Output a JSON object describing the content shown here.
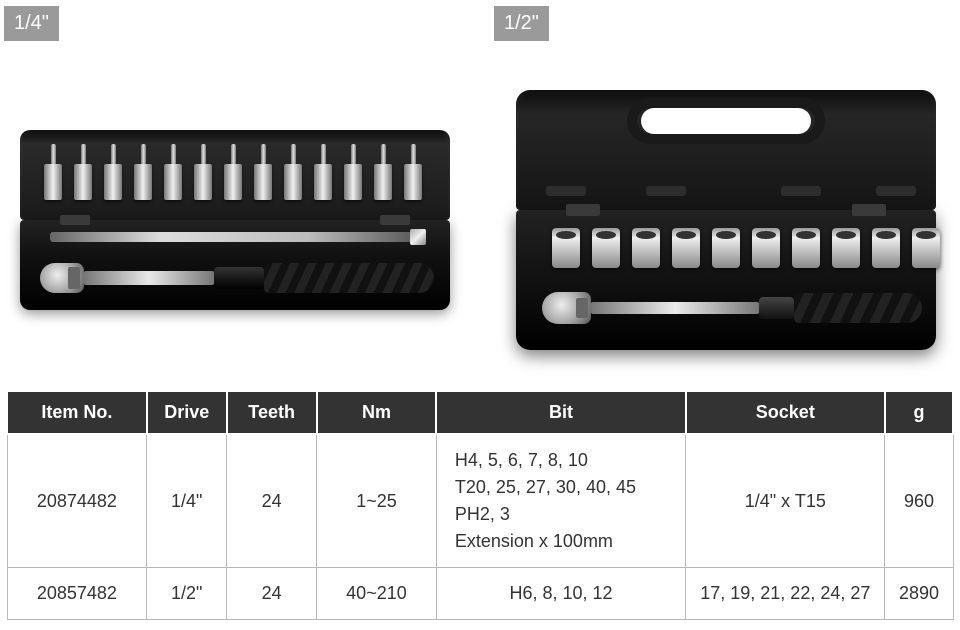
{
  "badges": {
    "left": "1/4\"",
    "right": "1/2\""
  },
  "table": {
    "headers": {
      "item": "Item No.",
      "drive": "Drive",
      "teeth": "Teeth",
      "nm": "Nm",
      "bit": "Bit",
      "socket": "Socket",
      "g": "g"
    },
    "rows": [
      {
        "item": "20874482",
        "drive": "1/4\"",
        "teeth": "24",
        "nm": "1~25",
        "bit_lines": [
          "H4, 5, 6, 7, 8, 10",
          "T20, 25, 27, 30, 40, 45",
          "PH2, 3",
          "Extension x 100mm"
        ],
        "socket": "1/4\" x T15",
        "g": "960"
      },
      {
        "item": "20857482",
        "drive": "1/2\"",
        "teeth": "24",
        "nm": "40~210",
        "bit_lines": [
          "H6, 8, 10, 12"
        ],
        "socket": "17, 19, 21, 22, 24, 27",
        "g": "2890"
      }
    ]
  },
  "visuals": {
    "case1": {
      "bit_count": 13
    },
    "case2": {
      "socket_count": 10,
      "rib_lefts": [
        30,
        130,
        265,
        360
      ],
      "rib_width": 40
    }
  },
  "colors": {
    "badge_bg": "#9a9a9a",
    "header_bg": "#333333",
    "border": "#b8b8b8",
    "text": "#333333"
  }
}
